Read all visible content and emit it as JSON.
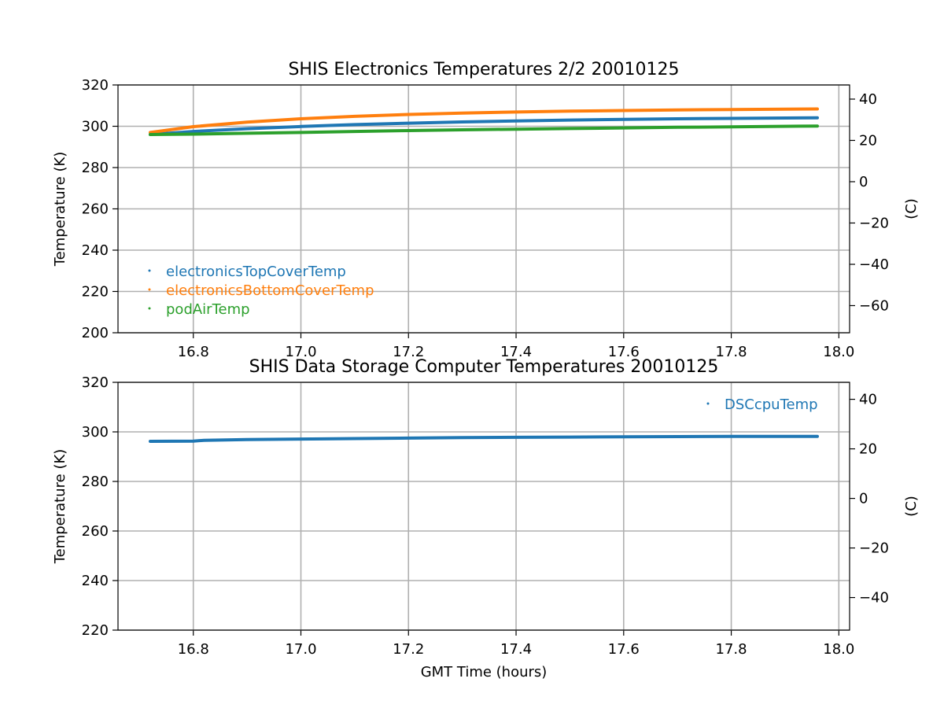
{
  "chart_data": [
    {
      "type": "line",
      "title": "SHIS Electronics Temperatures 2/2 20010125",
      "xlabel": "",
      "ylabel": "Temperature (K)",
      "ylabel_right": "(C)",
      "xlim": [
        16.66,
        18.02
      ],
      "ylim": [
        200,
        320
      ],
      "ylim_right": [
        -73.15,
        46.85
      ],
      "x_ticks": [
        "16.8",
        "17.0",
        "17.2",
        "17.4",
        "17.6",
        "17.8",
        "18.0"
      ],
      "y_ticks": [
        "200",
        "220",
        "240",
        "260",
        "280",
        "300",
        "320"
      ],
      "y_ticks_right": [
        "−60",
        "−40",
        "−20",
        "0",
        "20",
        "40"
      ],
      "grid": true,
      "legend_position": "lower-left",
      "series": [
        {
          "name": "electronicsTopCoverTemp",
          "color": "#1f77b4",
          "x": [
            16.72,
            16.8,
            16.9,
            17.0,
            17.1,
            17.2,
            17.3,
            17.4,
            17.5,
            17.6,
            17.7,
            17.8,
            17.96
          ],
          "y": [
            296.0,
            297.5,
            298.8,
            299.9,
            300.8,
            301.5,
            302.1,
            302.6,
            303.0,
            303.3,
            303.6,
            303.8,
            304.1
          ]
        },
        {
          "name": "electronicsBottomCoverTemp",
          "color": "#ff7f0e",
          "x": [
            16.72,
            16.8,
            16.9,
            17.0,
            17.1,
            17.2,
            17.3,
            17.4,
            17.5,
            17.6,
            17.7,
            17.8,
            17.96
          ],
          "y": [
            297.0,
            299.8,
            302.0,
            303.6,
            304.8,
            305.7,
            306.4,
            306.9,
            307.3,
            307.6,
            307.9,
            308.1,
            308.4
          ]
        },
        {
          "name": "podAirTemp",
          "color": "#2ca02c",
          "x": [
            16.72,
            16.8,
            16.9,
            17.0,
            17.1,
            17.2,
            17.3,
            17.4,
            17.5,
            17.6,
            17.7,
            17.8,
            17.96
          ],
          "y": [
            296.0,
            296.2,
            296.6,
            297.0,
            297.5,
            297.9,
            298.3,
            298.6,
            298.9,
            299.2,
            299.5,
            299.7,
            300.1
          ]
        }
      ]
    },
    {
      "type": "line",
      "title": "SHIS Data Storage Computer Temperatures 20010125",
      "xlabel": "GMT Time (hours)",
      "ylabel": "Temperature (K)",
      "ylabel_right": "(C)",
      "xlim": [
        16.66,
        18.02
      ],
      "ylim": [
        220,
        320
      ],
      "ylim_right": [
        -53.15,
        46.85
      ],
      "x_ticks": [
        "16.8",
        "17.0",
        "17.2",
        "17.4",
        "17.6",
        "17.8",
        "18.0"
      ],
      "y_ticks": [
        "220",
        "240",
        "260",
        "280",
        "300",
        "320"
      ],
      "y_ticks_right": [
        "−40",
        "−20",
        "0",
        "20",
        "40"
      ],
      "grid": true,
      "legend_position": "upper-right",
      "series": [
        {
          "name": "DSCcpuTemp",
          "color": "#1f77b4",
          "x": [
            16.72,
            16.8,
            16.82,
            16.9,
            17.0,
            17.1,
            17.2,
            17.3,
            17.4,
            17.5,
            17.6,
            17.7,
            17.8,
            17.96
          ],
          "y": [
            296.2,
            296.3,
            296.6,
            296.9,
            297.1,
            297.3,
            297.5,
            297.7,
            297.8,
            297.9,
            298.0,
            298.1,
            298.2,
            298.2
          ]
        }
      ]
    }
  ]
}
